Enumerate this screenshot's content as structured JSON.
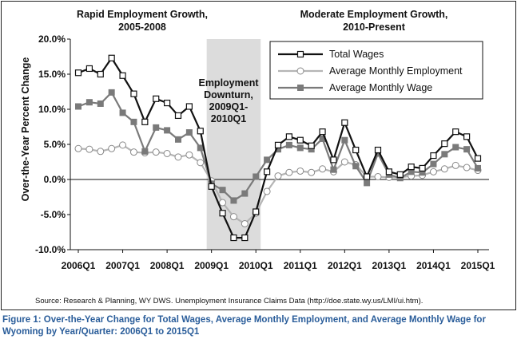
{
  "chart_data": {
    "type": "line",
    "ylabel": "Over-the-Year Percent Change",
    "ylim": [
      -10,
      20
    ],
    "yticks": [
      "-10.0%",
      "-5.0%",
      "0.0%",
      "5.0%",
      "10.0%",
      "15.0%",
      "20.0%"
    ],
    "ytick_values": [
      -10,
      -5,
      0,
      5,
      10,
      15,
      20
    ],
    "xticks": [
      "2006Q1",
      "2007Q1",
      "2008Q1",
      "2009Q1",
      "2010Q1",
      "2011Q1",
      "2012Q1",
      "2013Q1",
      "2014Q1",
      "2015Q1"
    ],
    "x": [
      "2006Q1",
      "2006Q2",
      "2006Q3",
      "2006Q4",
      "2007Q1",
      "2007Q2",
      "2007Q3",
      "2007Q4",
      "2008Q1",
      "2008Q2",
      "2008Q3",
      "2008Q4",
      "2009Q1",
      "2009Q2",
      "2009Q3",
      "2009Q4",
      "2010Q1",
      "2010Q2",
      "2010Q3",
      "2010Q4",
      "2011Q1",
      "2011Q2",
      "2011Q3",
      "2011Q4",
      "2012Q1",
      "2012Q2",
      "2012Q3",
      "2012Q4",
      "2013Q1",
      "2013Q2",
      "2013Q3",
      "2013Q4",
      "2014Q1",
      "2014Q2",
      "2014Q3",
      "2014Q4",
      "2015Q1"
    ],
    "series": [
      {
        "name": "Total Wages",
        "color": "#111111",
        "marker": "square-open",
        "values": [
          15.2,
          15.8,
          15.0,
          17.3,
          14.8,
          12.2,
          8.2,
          11.5,
          10.9,
          9.1,
          10.4,
          6.9,
          -1.0,
          -4.8,
          -8.3,
          -8.3,
          -4.6,
          1.1,
          4.9,
          6.1,
          5.6,
          4.8,
          6.8,
          2.8,
          8.1,
          4.2,
          0.4,
          4.2,
          1.1,
          0.7,
          1.8,
          1.6,
          3.4,
          5.1,
          6.8,
          6.1,
          3.0
        ]
      },
      {
        "name": "Average Monthly Employment",
        "color": "#b5b5b5",
        "marker": "circle-open",
        "values": [
          4.4,
          4.3,
          4.0,
          4.4,
          4.9,
          3.9,
          3.8,
          3.9,
          3.7,
          3.2,
          3.5,
          2.4,
          -0.2,
          -3.3,
          -5.3,
          -6.3,
          -4.8,
          -1.7,
          0.5,
          1.0,
          1.2,
          1.0,
          1.5,
          1.1,
          2.5,
          2.1,
          0.4,
          0.4,
          0.3,
          0.3,
          0.5,
          0.6,
          1.1,
          1.5,
          2.0,
          1.7,
          1.3
        ]
      },
      {
        "name": "Average Monthly Wage",
        "color": "#7a7a7a",
        "marker": "square-filled",
        "values": [
          10.4,
          11.0,
          10.8,
          12.4,
          9.5,
          8.2,
          4.0,
          7.4,
          7.0,
          5.7,
          6.7,
          4.5,
          -0.6,
          -1.5,
          -3.0,
          -2.0,
          0.4,
          2.8,
          4.3,
          4.9,
          4.5,
          4.3,
          5.8,
          1.4,
          5.6,
          1.9,
          -0.5,
          3.7,
          0.7,
          0.2,
          1.1,
          1.0,
          2.2,
          3.6,
          4.6,
          4.3,
          1.6
        ]
      }
    ],
    "annotations": {
      "left_title_line1": "Rapid Employment Growth,",
      "left_title_line2": "2005-2008",
      "right_title_line1": "Moderate Employment Growth,",
      "right_title_line2": "2010-Present",
      "shaded_line1": "Employment",
      "shaded_line2": "Downturn,",
      "shaded_line3": "2009Q1-",
      "shaded_line4": "2010Q1",
      "shaded_color": "#dcdcdc"
    },
    "legend_position": "top-right",
    "grid": false
  },
  "source": "Source: Research & Planning, WY DWS. Unemployment Insurance Claims Data (http://doe.state.wy.us/LMI/ui.htm).",
  "caption": {
    "figure_label": "Figure 1:",
    "text": "Over-the-Year Change for Total Wages, Average Monthly Employment, and Average Monthly Wage for Wyoming by Year/Quarter: 2006Q1 to 2015Q1"
  }
}
